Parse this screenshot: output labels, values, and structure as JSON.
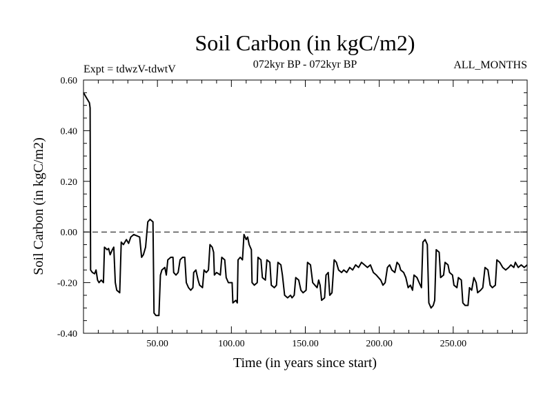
{
  "chart_data": {
    "type": "line",
    "title": "Soil Carbon (in kgC/m2)",
    "subtitle_left": "Expt = tdwzV-tdwtV",
    "subtitle_center": "072kyr BP - 072kyr BP",
    "subtitle_right": "ALL_MONTHS",
    "xlabel": "Time (in years since start)",
    "ylabel": "Soil Carbon (in kgC/m2)",
    "xlim": [
      0,
      300
    ],
    "ylim": [
      -0.4,
      0.6
    ],
    "x_ticks": [
      50,
      100,
      150,
      200,
      250
    ],
    "x_tick_labels": [
      "50.00",
      "100.00",
      "150.00",
      "200.00",
      "250.00"
    ],
    "y_ticks": [
      -0.4,
      -0.2,
      0.0,
      0.2,
      0.4,
      0.6
    ],
    "y_tick_labels": [
      "-0.40",
      "-0.20",
      "0.00",
      "0.20",
      "0.40",
      "0.60"
    ],
    "zero_line": "dashed",
    "grid": false,
    "series": [
      {
        "values": [
          [
            0,
            0.55
          ],
          [
            2,
            0.53
          ],
          [
            4,
            0.51
          ],
          [
            4.5,
            0.49
          ],
          [
            4.8,
            -0.15
          ],
          [
            6,
            -0.16
          ],
          [
            7.5,
            -0.165
          ],
          [
            8.5,
            -0.15
          ],
          [
            9.5,
            -0.19
          ],
          [
            10.5,
            -0.2
          ],
          [
            12,
            -0.19
          ],
          [
            13.5,
            -0.2
          ],
          [
            14.2,
            -0.06
          ],
          [
            16,
            -0.07
          ],
          [
            17,
            -0.065
          ],
          [
            18,
            -0.09
          ],
          [
            19.5,
            -0.07
          ],
          [
            20.5,
            -0.06
          ],
          [
            21.5,
            -0.2
          ],
          [
            22.5,
            -0.23
          ],
          [
            24.5,
            -0.24
          ],
          [
            25.5,
            -0.04
          ],
          [
            27,
            -0.05
          ],
          [
            28,
            -0.04
          ],
          [
            29,
            -0.03
          ],
          [
            30.5,
            -0.045
          ],
          [
            32,
            -0.02
          ],
          [
            34,
            -0.01
          ],
          [
            36,
            -0.015
          ],
          [
            38,
            -0.02
          ],
          [
            39.3,
            -0.1
          ],
          [
            40.5,
            -0.09
          ],
          [
            42,
            -0.06
          ],
          [
            43.5,
            0.04
          ],
          [
            45,
            0.05
          ],
          [
            47,
            0.04
          ],
          [
            47.7,
            -0.32
          ],
          [
            49,
            -0.33
          ],
          [
            51,
            -0.33
          ],
          [
            52,
            -0.17
          ],
          [
            53,
            -0.15
          ],
          [
            55,
            -0.14
          ],
          [
            56,
            -0.17
          ],
          [
            57,
            -0.11
          ],
          [
            59,
            -0.1
          ],
          [
            60.5,
            -0.1
          ],
          [
            61,
            -0.16
          ],
          [
            62.5,
            -0.17
          ],
          [
            64,
            -0.16
          ],
          [
            65.3,
            -0.11
          ],
          [
            67,
            -0.1
          ],
          [
            68.5,
            -0.1
          ],
          [
            69.5,
            -0.2
          ],
          [
            71,
            -0.22
          ],
          [
            72.5,
            -0.23
          ],
          [
            74,
            -0.22
          ],
          [
            74.5,
            -0.16
          ],
          [
            76,
            -0.15
          ],
          [
            77.5,
            -0.19
          ],
          [
            78.5,
            -0.21
          ],
          [
            80.5,
            -0.22
          ],
          [
            81.5,
            -0.15
          ],
          [
            83,
            -0.16
          ],
          [
            84.5,
            -0.15
          ],
          [
            85.5,
            -0.05
          ],
          [
            87,
            -0.06
          ],
          [
            88,
            -0.08
          ],
          [
            88.5,
            -0.17
          ],
          [
            90,
            -0.16
          ],
          [
            92.5,
            -0.17
          ],
          [
            93.5,
            -0.1
          ],
          [
            95.5,
            -0.11
          ],
          [
            96.5,
            -0.18
          ],
          [
            98,
            -0.2
          ],
          [
            100.5,
            -0.2
          ],
          [
            101,
            -0.28
          ],
          [
            103,
            -0.27
          ],
          [
            104,
            -0.28
          ],
          [
            104.5,
            -0.11
          ],
          [
            106,
            -0.1
          ],
          [
            107.5,
            -0.11
          ],
          [
            108.5,
            -0.01
          ],
          [
            110,
            -0.03
          ],
          [
            111,
            -0.02
          ],
          [
            112,
            -0.05
          ],
          [
            113.5,
            -0.07
          ],
          [
            114,
            -0.2
          ],
          [
            115.5,
            -0.21
          ],
          [
            117.5,
            -0.2
          ],
          [
            118,
            -0.1
          ],
          [
            120,
            -0.11
          ],
          [
            121,
            -0.18
          ],
          [
            123,
            -0.19
          ],
          [
            124,
            -0.11
          ],
          [
            126,
            -0.12
          ],
          [
            127,
            -0.21
          ],
          [
            129,
            -0.22
          ],
          [
            130.5,
            -0.21
          ],
          [
            131.5,
            -0.12
          ],
          [
            133.5,
            -0.13
          ],
          [
            134.5,
            -0.17
          ],
          [
            136,
            -0.25
          ],
          [
            138,
            -0.26
          ],
          [
            140,
            -0.25
          ],
          [
            141,
            -0.26
          ],
          [
            142.5,
            -0.25
          ],
          [
            143.5,
            -0.18
          ],
          [
            145.5,
            -0.19
          ],
          [
            147,
            -0.23
          ],
          [
            148.5,
            -0.24
          ],
          [
            150.5,
            -0.23
          ],
          [
            151.5,
            -0.12
          ],
          [
            153.5,
            -0.13
          ],
          [
            155,
            -0.2
          ],
          [
            156.5,
            -0.21
          ],
          [
            158,
            -0.22
          ],
          [
            159,
            -0.19
          ],
          [
            160,
            -0.21
          ],
          [
            161,
            -0.27
          ],
          [
            163,
            -0.26
          ],
          [
            164,
            -0.17
          ],
          [
            165.5,
            -0.16
          ],
          [
            166.5,
            -0.25
          ],
          [
            168,
            -0.24
          ],
          [
            169.5,
            -0.11
          ],
          [
            171,
            -0.12
          ],
          [
            172.5,
            -0.15
          ],
          [
            174.5,
            -0.16
          ],
          [
            176,
            -0.15
          ],
          [
            178,
            -0.16
          ],
          [
            180,
            -0.14
          ],
          [
            182,
            -0.15
          ],
          [
            184,
            -0.13
          ],
          [
            186,
            -0.14
          ],
          [
            188,
            -0.12
          ],
          [
            190,
            -0.13
          ],
          [
            192,
            -0.14
          ],
          [
            194,
            -0.13
          ],
          [
            196,
            -0.16
          ],
          [
            198,
            -0.17
          ],
          [
            199.5,
            -0.18
          ],
          [
            201,
            -0.19
          ],
          [
            202.5,
            -0.21
          ],
          [
            204,
            -0.2
          ],
          [
            205.5,
            -0.14
          ],
          [
            207,
            -0.13
          ],
          [
            208.5,
            -0.15
          ],
          [
            210.5,
            -0.16
          ],
          [
            212,
            -0.12
          ],
          [
            213.5,
            -0.13
          ],
          [
            214.5,
            -0.15
          ],
          [
            216.5,
            -0.16
          ],
          [
            218,
            -0.18
          ],
          [
            219.5,
            -0.22
          ],
          [
            221,
            -0.21
          ],
          [
            222.5,
            -0.23
          ],
          [
            223.5,
            -0.17
          ],
          [
            225.5,
            -0.18
          ],
          [
            227,
            -0.2
          ],
          [
            228.5,
            -0.22
          ],
          [
            229.5,
            -0.04
          ],
          [
            231,
            -0.03
          ],
          [
            232.5,
            -0.05
          ],
          [
            233.5,
            -0.28
          ],
          [
            235,
            -0.3
          ],
          [
            236.5,
            -0.29
          ],
          [
            237.5,
            -0.27
          ],
          [
            238.5,
            -0.07
          ],
          [
            240.5,
            -0.08
          ],
          [
            241.5,
            -0.18
          ],
          [
            243.5,
            -0.17
          ],
          [
            244.5,
            -0.12
          ],
          [
            246.5,
            -0.13
          ],
          [
            247.5,
            -0.16
          ],
          [
            249.5,
            -0.17
          ],
          [
            250.5,
            -0.21
          ],
          [
            252.5,
            -0.22
          ],
          [
            253.5,
            -0.18
          ],
          [
            255.5,
            -0.19
          ],
          [
            256.5,
            -0.28
          ],
          [
            258,
            -0.29
          ],
          [
            260,
            -0.29
          ],
          [
            261,
            -0.22
          ],
          [
            262.5,
            -0.23
          ],
          [
            264,
            -0.18
          ],
          [
            265.5,
            -0.2
          ],
          [
            266.5,
            -0.24
          ],
          [
            268.5,
            -0.23
          ],
          [
            270,
            -0.22
          ],
          [
            271.5,
            -0.14
          ],
          [
            273.5,
            -0.15
          ],
          [
            275,
            -0.21
          ],
          [
            276.5,
            -0.22
          ],
          [
            278.5,
            -0.21
          ],
          [
            279.5,
            -0.11
          ],
          [
            281.5,
            -0.12
          ],
          [
            283.5,
            -0.14
          ],
          [
            285.5,
            -0.15
          ],
          [
            287.5,
            -0.14
          ],
          [
            289,
            -0.13
          ],
          [
            291,
            -0.14
          ],
          [
            292,
            -0.12
          ],
          [
            294,
            -0.14
          ],
          [
            296,
            -0.13
          ],
          [
            298,
            -0.14
          ],
          [
            300,
            -0.13
          ]
        ]
      }
    ]
  }
}
